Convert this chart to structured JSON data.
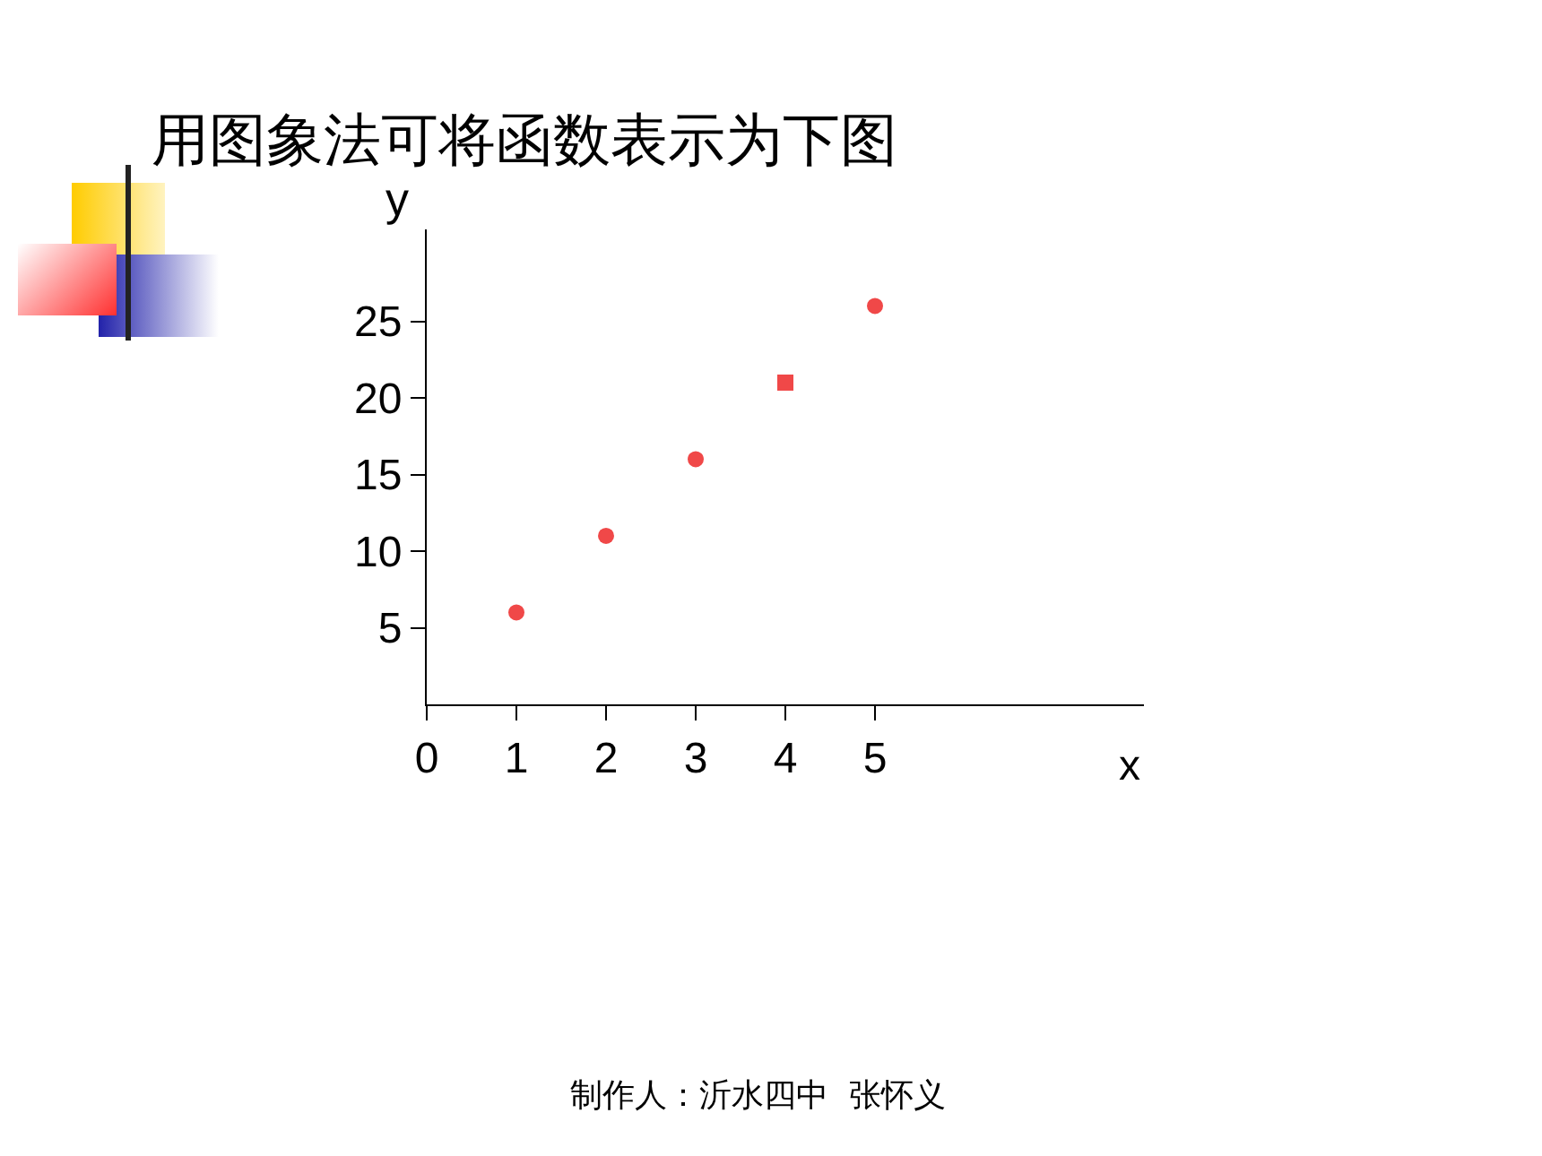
{
  "chart_data": {
    "type": "scatter",
    "title": "用图象法可将函数表示为下图",
    "xlabel": "x",
    "ylabel": "y",
    "series": [
      {
        "color": "#f04848",
        "x": [
          1,
          2,
          3,
          5
        ],
        "values": [
          6,
          11,
          16,
          26
        ],
        "marker": "circle"
      },
      {
        "color": "#f04848",
        "x": [
          4
        ],
        "values": [
          21
        ],
        "marker": "square"
      }
    ],
    "xlim": [
      0,
      8
    ],
    "xticks": [
      0,
      1,
      2,
      3,
      4,
      5
    ],
    "ylim": [
      0,
      31
    ],
    "yticks": [
      5,
      10,
      15,
      20,
      25
    ],
    "grid": false,
    "annotations": [
      "制作人：沂水四中  张怀义"
    ]
  }
}
